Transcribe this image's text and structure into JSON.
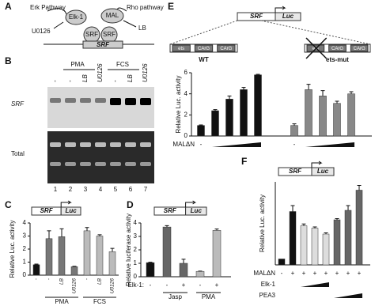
{
  "panel_a": {
    "label": "A",
    "erk": "Erk Pathway",
    "rho": "Rho pathway",
    "u0126": "U0126",
    "lb": "LB",
    "elk": "Elk-1",
    "mal": "MAL",
    "srf_left": "SRF",
    "srf_right": "SRF",
    "gene": "SRF"
  },
  "panel_b": {
    "label": "B",
    "groups": [
      "PMA",
      "FCS"
    ],
    "lanes": [
      "-",
      "-",
      "LB",
      "U0126",
      "-",
      "LB",
      "U0126"
    ],
    "rows": [
      "SRF",
      "Total"
    ],
    "lane_numbers": [
      "1",
      "2",
      "3",
      "4",
      "5",
      "6",
      "7"
    ]
  },
  "chart_data": [
    {
      "type": "bar",
      "panel_label": "C",
      "construct": [
        "SRF",
        "Luc"
      ],
      "y_label": "Relative Luc. activity",
      "categories": [
        "-",
        "-",
        "LB",
        "U0126",
        "-",
        "LB",
        "U0126"
      ],
      "group_labels": [
        "PMA",
        "FCS"
      ],
      "values": [
        0.8,
        2.8,
        2.95,
        0.65,
        3.4,
        3.0,
        1.8
      ],
      "errors": [
        0.05,
        0.6,
        0.6,
        0.03,
        0.25,
        0.1,
        0.25
      ],
      "colors": [
        "#111111",
        "#777777",
        "#777777",
        "#777777",
        "#bbbbbb",
        "#bbbbbb",
        "#bbbbbb"
      ],
      "ylim": [
        0,
        4
      ],
      "yticks": [
        0,
        1,
        2,
        3,
        4
      ]
    },
    {
      "type": "bar",
      "panel_label": "D",
      "construct": [
        "SRF",
        "Luc"
      ],
      "y_label": "Relative luciferase activity",
      "rows": [
        {
          "name": "Elk-1:",
          "values": [
            "-",
            "-",
            "+",
            "-",
            "+"
          ]
        }
      ],
      "group_labels": [
        "Jasp",
        "PMA"
      ],
      "values": [
        1.05,
        3.7,
        1.0,
        0.4,
        3.45
      ],
      "errors": [
        0.03,
        0.1,
        0.3,
        0.02,
        0.1
      ],
      "colors": [
        "#111111",
        "#666666",
        "#666666",
        "#bbbbbb",
        "#bbbbbb"
      ],
      "ylim": [
        0,
        4
      ],
      "yticks": [
        0,
        1,
        2,
        3,
        4
      ]
    },
    {
      "type": "bar",
      "panel_label": "E",
      "construct": [
        "SRF",
        "Luc"
      ],
      "y_label": "Relative Luc. activity",
      "promoters": [
        {
          "label": "WT",
          "elements": [
            "ets",
            "CArG",
            "CArG"
          ]
        },
        {
          "label": "ets-mut",
          "elements": [
            "ets",
            "CArG",
            "CArG"
          ]
        }
      ],
      "rows": [
        {
          "name": "MALΔN",
          "values": [
            "-",
            null,
            null,
            null,
            null,
            "-",
            null,
            null,
            null,
            null
          ]
        }
      ],
      "values": [
        1.0,
        2.4,
        3.5,
        4.4,
        5.8,
        1.0,
        4.4,
        3.8,
        3.1,
        4.0
      ],
      "errors": [
        0.05,
        0.1,
        0.3,
        0.2,
        0.05,
        0.15,
        0.5,
        0.5,
        0.2,
        0.2
      ],
      "colors": [
        "#111111",
        "#111111",
        "#111111",
        "#111111",
        "#111111",
        "#888888",
        "#888888",
        "#888888",
        "#888888",
        "#888888"
      ],
      "ylim": [
        0,
        6
      ],
      "yticks": [
        0,
        2,
        4,
        6
      ]
    },
    {
      "type": "bar",
      "panel_label": "F",
      "construct": [
        "SRF",
        "Luc"
      ],
      "y_label": "Relative Luc. activity",
      "rows": [
        {
          "name": "MALΔN",
          "values": [
            "-",
            "+",
            "+",
            "+",
            "+",
            "+",
            "+",
            "+"
          ]
        },
        {
          "name": "Elk-1"
        },
        {
          "name": "PEA3"
        }
      ],
      "values": [
        5,
        45,
        33,
        31,
        26,
        38,
        46,
        63
      ],
      "errors": [
        null,
        5,
        1.5,
        1,
        1,
        1,
        4,
        4
      ],
      "colors": [
        "#111111",
        "#111111",
        "#dddddd",
        "#dddddd",
        "#dddddd",
        "#666666",
        "#666666",
        "#666666"
      ],
      "ylim": [
        0,
        70
      ]
    }
  ]
}
